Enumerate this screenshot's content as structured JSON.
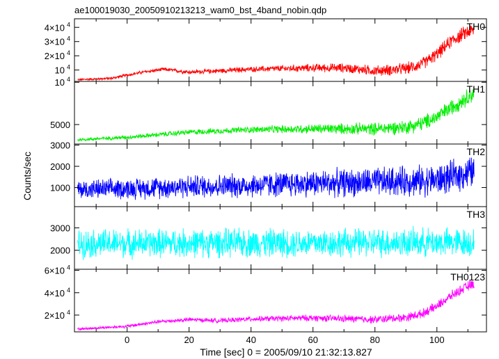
{
  "chart_data": {
    "type": "line",
    "title": "ae100019030_20050910213213_wam0_bst_4band_nobin.qdp",
    "xlabel": "Time [sec] 0 = 2005/09/10 21:32:13.827",
    "ylabel": "Counts/sec",
    "xlim": [
      -17,
      116
    ],
    "xticks": [
      {
        "value": 0,
        "label": "0"
      },
      {
        "value": 20,
        "label": "20"
      },
      {
        "value": 40,
        "label": "40"
      },
      {
        "value": 60,
        "label": "60"
      },
      {
        "value": 80,
        "label": "80"
      },
      {
        "value": 100,
        "label": "100"
      }
    ],
    "panels": [
      {
        "name": "TH0",
        "color": "#ff0000",
        "ylim": [
          2000,
          46000
        ],
        "yticks": [
          {
            "value": 10000,
            "base": "10",
            "exp": "4"
          },
          {
            "value": 20000,
            "base": "2×10",
            "exp": "4"
          },
          {
            "value": 30000,
            "base": "3×10",
            "exp": "4"
          },
          {
            "value": 40000,
            "base": "4×10",
            "exp": "4"
          }
        ],
        "mean": {
          "x": [
            -16,
            -5,
            5,
            12,
            20,
            30,
            40,
            50,
            60,
            70,
            80,
            85,
            90,
            95,
            100,
            105,
            110,
            112
          ],
          "y": [
            3200,
            4200,
            8500,
            10500,
            8500,
            9500,
            10500,
            11000,
            11500,
            11500,
            9500,
            10000,
            11000,
            14000,
            21000,
            31000,
            37000,
            38000
          ]
        },
        "noise": [
          600,
          1500,
          4000
        ]
      },
      {
        "name": "TH1",
        "color": "#00ee00",
        "ylim": [
          2700,
          10100
        ],
        "yticks": [
          {
            "value": 5000,
            "base": "5000",
            "exp": ""
          },
          {
            "value": 10000,
            "base": "10",
            "exp": "4"
          }
        ],
        "mean": {
          "x": [
            -16,
            0,
            20,
            40,
            60,
            80,
            90,
            95,
            100,
            105,
            110,
            112
          ],
          "y": [
            3200,
            3500,
            4100,
            4400,
            4500,
            4500,
            4700,
            5100,
            5900,
            7100,
            8300,
            8700
          ]
        },
        "noise": [
          150,
          300,
          800
        ]
      },
      {
        "name": "TH2",
        "color": "#0000ff",
        "ylim": [
          100,
          3050
        ],
        "yticks": [
          {
            "value": 1000,
            "base": "1000",
            "exp": ""
          },
          {
            "value": 2000,
            "base": "2000",
            "exp": ""
          },
          {
            "value": 3000,
            "base": "3000",
            "exp": ""
          }
        ],
        "mean": {
          "x": [
            -16,
            0,
            20,
            40,
            60,
            80,
            100,
            105,
            110,
            112
          ],
          "y": [
            900,
            950,
            1050,
            1100,
            1200,
            1250,
            1350,
            1500,
            1700,
            1750
          ]
        },
        "noise": [
          350,
          450,
          600
        ]
      },
      {
        "name": "TH3",
        "color": "#00ffff",
        "ylim": [
          1150,
          3950
        ],
        "yticks": [
          {
            "value": 2000,
            "base": "2000",
            "exp": ""
          },
          {
            "value": 3000,
            "base": "3000",
            "exp": ""
          }
        ],
        "mean": {
          "x": [
            -16,
            20,
            60,
            100,
            112
          ],
          "y": [
            2300,
            2320,
            2330,
            2350,
            2350
          ]
        },
        "noise": [
          500,
          500,
          500
        ]
      },
      {
        "name": "TH0123",
        "color": "#ff00ff",
        "ylim": [
          5000,
          61000
        ],
        "yticks": [
          {
            "value": 20000,
            "base": "2×10",
            "exp": "4"
          },
          {
            "value": 40000,
            "base": "4×10",
            "exp": "4"
          },
          {
            "value": 60000,
            "base": "6×10",
            "exp": "4"
          }
        ],
        "mean": {
          "x": [
            -16,
            0,
            10,
            20,
            30,
            40,
            60,
            80,
            90,
            95,
            100,
            105,
            110,
            112
          ],
          "y": [
            7500,
            10000,
            14000,
            16000,
            15000,
            16500,
            17500,
            16000,
            18000,
            21000,
            28000,
            38000,
            46000,
            48000
          ]
        },
        "noise": [
          800,
          1800,
          3500
        ]
      }
    ]
  }
}
